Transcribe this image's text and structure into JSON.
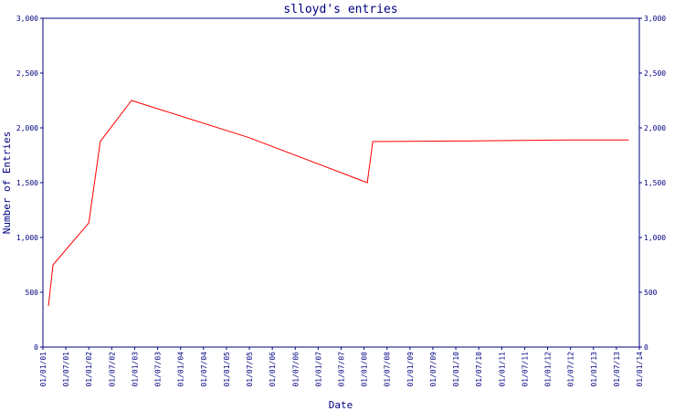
{
  "chart_data": {
    "type": "line",
    "title": "slloyd's entries",
    "x_label": "Date",
    "y_label": "Number of Entries",
    "x": [
      2001.12,
      2001.22,
      2002.0,
      2002.25,
      2002.93,
      2005.5,
      2008.07,
      2008.19,
      2010.02,
      2012.41,
      2013.77
    ],
    "series": [
      {
        "name": "entries",
        "color": "#ff0000",
        "values": [
          375,
          750,
          1133,
          1875,
          2250,
          1910,
          1500,
          1875,
          1880,
          1890,
          1890
        ]
      }
    ],
    "xlim": [
      2001.0,
      2014.0
    ],
    "xticks": [
      {
        "value": 2001.0,
        "label": "01/01/01"
      },
      {
        "value": 2001.5,
        "label": "01/07/01"
      },
      {
        "value": 2002.0,
        "label": "01/01/02"
      },
      {
        "value": 2002.5,
        "label": "01/07/02"
      },
      {
        "value": 2003.0,
        "label": "01/01/03"
      },
      {
        "value": 2003.5,
        "label": "01/07/03"
      },
      {
        "value": 2004.0,
        "label": "01/01/04"
      },
      {
        "value": 2004.5,
        "label": "01/07/04"
      },
      {
        "value": 2005.0,
        "label": "01/01/05"
      },
      {
        "value": 2005.5,
        "label": "01/07/05"
      },
      {
        "value": 2006.0,
        "label": "01/01/06"
      },
      {
        "value": 2006.5,
        "label": "01/07/06"
      },
      {
        "value": 2007.0,
        "label": "01/01/07"
      },
      {
        "value": 2007.5,
        "label": "01/07/07"
      },
      {
        "value": 2008.0,
        "label": "01/01/08"
      },
      {
        "value": 2008.5,
        "label": "01/07/08"
      },
      {
        "value": 2009.0,
        "label": "01/01/09"
      },
      {
        "value": 2009.5,
        "label": "01/07/09"
      },
      {
        "value": 2010.0,
        "label": "01/01/10"
      },
      {
        "value": 2010.5,
        "label": "01/07/10"
      },
      {
        "value": 2011.0,
        "label": "01/01/11"
      },
      {
        "value": 2011.5,
        "label": "01/07/11"
      },
      {
        "value": 2012.0,
        "label": "01/01/12"
      },
      {
        "value": 2012.5,
        "label": "01/07/12"
      },
      {
        "value": 2013.0,
        "label": "01/01/13"
      },
      {
        "value": 2013.5,
        "label": "01/07/13"
      },
      {
        "value": 2014.0,
        "label": "01/01/14"
      }
    ],
    "ylim": [
      0,
      3000
    ],
    "yticks": [
      0,
      500,
      {
        "value": 1000,
        "label": "1,000"
      },
      {
        "value": 1500,
        "label": "1,500"
      },
      {
        "value": 2000,
        "label": "2,000"
      },
      {
        "value": 2500,
        "label": "2,500"
      },
      {
        "value": 3000,
        "label": "3,000"
      }
    ],
    "axis_color": "#000080"
  }
}
